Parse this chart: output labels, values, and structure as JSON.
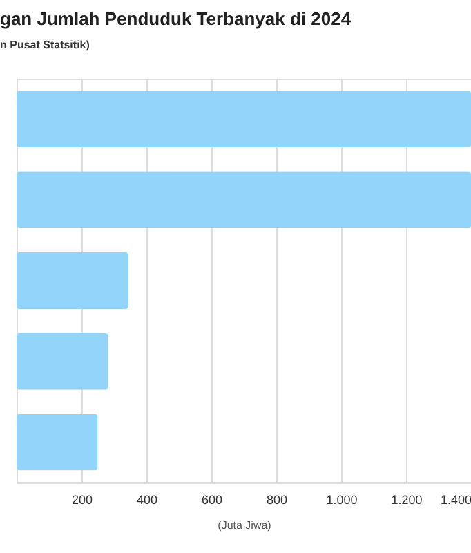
{
  "chart_data": {
    "type": "bar",
    "orientation": "horizontal",
    "title": "gan Jumlah Penduduk Terbanyak di 2024",
    "subtitle": "n Pusat Statsitik)",
    "xlabel": "(Juta Jiwa)",
    "categories": [
      null,
      null,
      null,
      null,
      null
    ],
    "values": [
      1400,
      1400,
      344,
      282,
      250
    ],
    "color": "#93d5fa",
    "xlim": [
      0,
      1400
    ],
    "xticks": [
      200,
      400,
      600,
      800,
      {
        "value": 1000,
        "label": "1.000"
      },
      {
        "value": 1200,
        "label": "1.200"
      },
      {
        "value": 1400,
        "label": "1.400"
      }
    ],
    "grid": "x",
    "tick_labels": "x"
  }
}
